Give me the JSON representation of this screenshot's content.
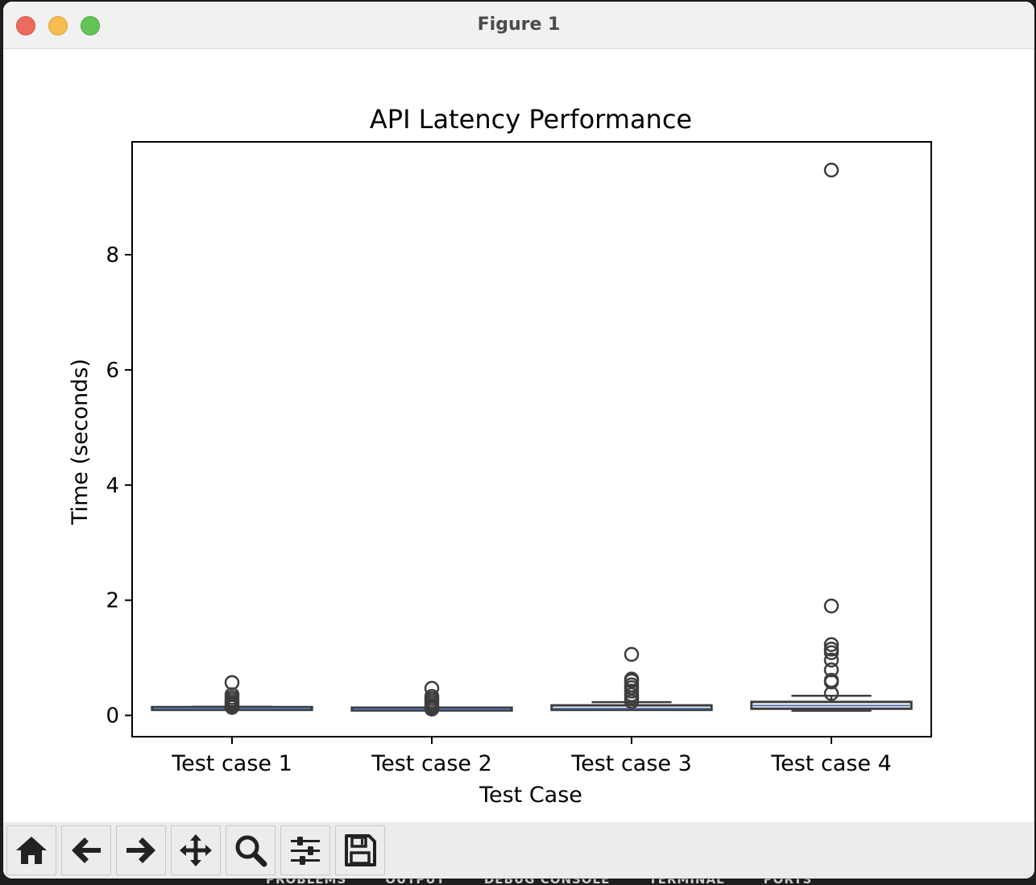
{
  "background_panel": {
    "tabs": [
      "PROBLEMS",
      "OUTPUT",
      "DEBUG CONSOLE",
      "TERMINAL",
      "PORTS"
    ]
  },
  "window": {
    "title": "Figure 1"
  },
  "toolbar": {
    "buttons": [
      {
        "name": "home-button",
        "icon": "home-icon"
      },
      {
        "name": "back-button",
        "icon": "arrow-left-icon"
      },
      {
        "name": "forward-button",
        "icon": "arrow-right-icon"
      },
      {
        "name": "pan-button",
        "icon": "move-icon"
      },
      {
        "name": "zoom-button",
        "icon": "magnifier-icon"
      },
      {
        "name": "configure-subplots-button",
        "icon": "sliders-icon"
      },
      {
        "name": "save-button",
        "icon": "floppy-disk-icon"
      }
    ]
  },
  "chart_data": {
    "type": "box",
    "title": "API Latency Performance",
    "xlabel": "Test Case",
    "ylabel": "Time (seconds)",
    "ylim": [
      -0.37,
      9.96
    ],
    "yticks": [
      0,
      2,
      4,
      6,
      8
    ],
    "grid": false,
    "categories": [
      "Test case 1",
      "Test case 2",
      "Test case 3",
      "Test case 4"
    ],
    "boxes": [
      {
        "whisker_low": 0.1,
        "q1": 0.11,
        "median": 0.12,
        "q3": 0.13,
        "whisker_high": 0.15,
        "outliers": [
          0.14,
          0.17,
          0.2,
          0.23,
          0.27,
          0.31,
          0.36,
          0.57
        ]
      },
      {
        "whisker_low": 0.1,
        "q1": 0.1,
        "median": 0.11,
        "q3": 0.12,
        "whisker_high": 0.13,
        "outliers": [
          0.11,
          0.14,
          0.17,
          0.21,
          0.25,
          0.29,
          0.33,
          0.47
        ]
      },
      {
        "whisker_low": 0.1,
        "q1": 0.11,
        "median": 0.12,
        "q3": 0.16,
        "whisker_high": 0.23,
        "outliers": [
          0.24,
          0.3,
          0.36,
          0.42,
          0.48,
          0.53,
          0.6,
          0.63,
          1.06
        ]
      },
      {
        "whisker_low": 0.08,
        "q1": 0.13,
        "median": 0.17,
        "q3": 0.22,
        "whisker_high": 0.34,
        "outliers": [
          0.38,
          0.58,
          0.61,
          0.79,
          0.96,
          1.09,
          1.15,
          1.23,
          1.9,
          9.47
        ]
      }
    ],
    "colors": {
      "box_edge": "#3d3d3d",
      "median": "#4c72b0",
      "box_fill": "#ffffff"
    }
  }
}
